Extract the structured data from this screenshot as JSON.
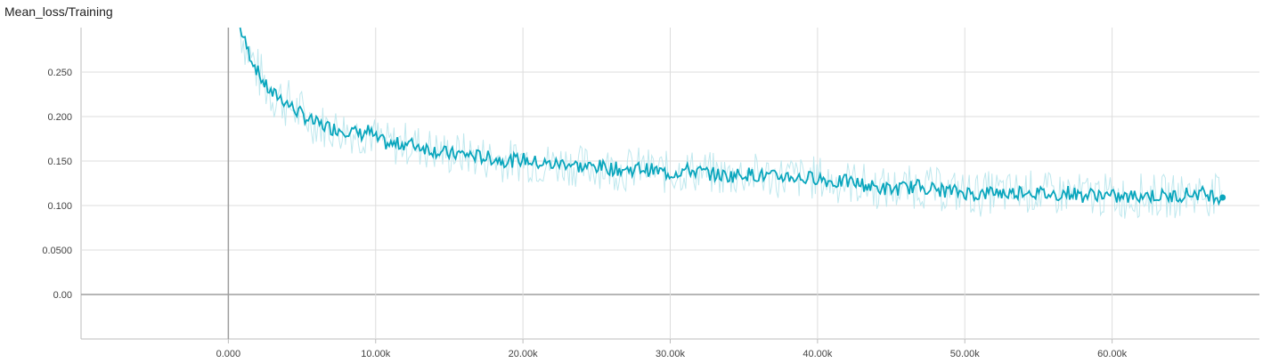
{
  "chart_data": {
    "type": "line",
    "title": "Mean_loss/Training",
    "xlabel": "",
    "ylabel": "",
    "xlim": [
      -10000,
      70000
    ],
    "ylim": [
      -0.05,
      0.3
    ],
    "x_ticks": [
      {
        "value": 0,
        "label": "0.000"
      },
      {
        "value": 10000,
        "label": "10.00k"
      },
      {
        "value": 20000,
        "label": "20.00k"
      },
      {
        "value": 30000,
        "label": "30.00k"
      },
      {
        "value": 40000,
        "label": "40.00k"
      },
      {
        "value": 50000,
        "label": "50.00k"
      },
      {
        "value": 60000,
        "label": "60.00k"
      }
    ],
    "y_ticks": [
      {
        "value": 0,
        "label": "0.00"
      },
      {
        "value": 0.05,
        "label": "0.0500"
      },
      {
        "value": 0.1,
        "label": "0.100"
      },
      {
        "value": 0.15,
        "label": "0.150"
      },
      {
        "value": 0.2,
        "label": "0.200"
      },
      {
        "value": 0.25,
        "label": "0.250"
      }
    ],
    "grid": true,
    "colors": {
      "smoothed": "#0aa6bd",
      "raw": "#bfe8ee",
      "grid": "#dddddd",
      "zero_axis": "#9e9e9e"
    },
    "series": [
      {
        "role": "smoothed",
        "x": [
          800,
          1000,
          1300,
          1600,
          2000,
          2500,
          3000,
          3500,
          4000,
          4500,
          5000,
          5500,
          6000,
          7000,
          8000,
          9000,
          9500,
          10000,
          11000,
          12000,
          13000,
          14000,
          15000,
          16000,
          17000,
          18000,
          19000,
          20000,
          21000,
          22000,
          23000,
          24000,
          25000,
          26000,
          27000,
          28000,
          29000,
          30000,
          31000,
          32000,
          33000,
          34000,
          35000,
          36000,
          37000,
          38000,
          39000,
          40000,
          41000,
          42000,
          43000,
          44000,
          45000,
          46000,
          47000,
          48000,
          49000,
          50000,
          51000,
          52000,
          53000,
          54000,
          55000,
          56000,
          57000,
          58000,
          59000,
          60000,
          61000,
          62000,
          63000,
          64000,
          65000,
          66000,
          67000,
          67500
        ],
        "y": [
          0.3,
          0.29,
          0.275,
          0.265,
          0.25,
          0.235,
          0.225,
          0.222,
          0.215,
          0.208,
          0.202,
          0.196,
          0.192,
          0.187,
          0.185,
          0.18,
          0.184,
          0.175,
          0.168,
          0.17,
          0.167,
          0.162,
          0.158,
          0.158,
          0.155,
          0.153,
          0.15,
          0.152,
          0.148,
          0.146,
          0.148,
          0.143,
          0.144,
          0.142,
          0.14,
          0.142,
          0.139,
          0.136,
          0.14,
          0.138,
          0.135,
          0.133,
          0.136,
          0.134,
          0.132,
          0.133,
          0.13,
          0.132,
          0.126,
          0.127,
          0.124,
          0.12,
          0.118,
          0.12,
          0.122,
          0.118,
          0.116,
          0.115,
          0.112,
          0.116,
          0.113,
          0.117,
          0.114,
          0.112,
          0.115,
          0.111,
          0.113,
          0.11,
          0.109,
          0.112,
          0.111,
          0.11,
          0.113,
          0.114,
          0.111,
          0.109
        ]
      }
    ]
  }
}
